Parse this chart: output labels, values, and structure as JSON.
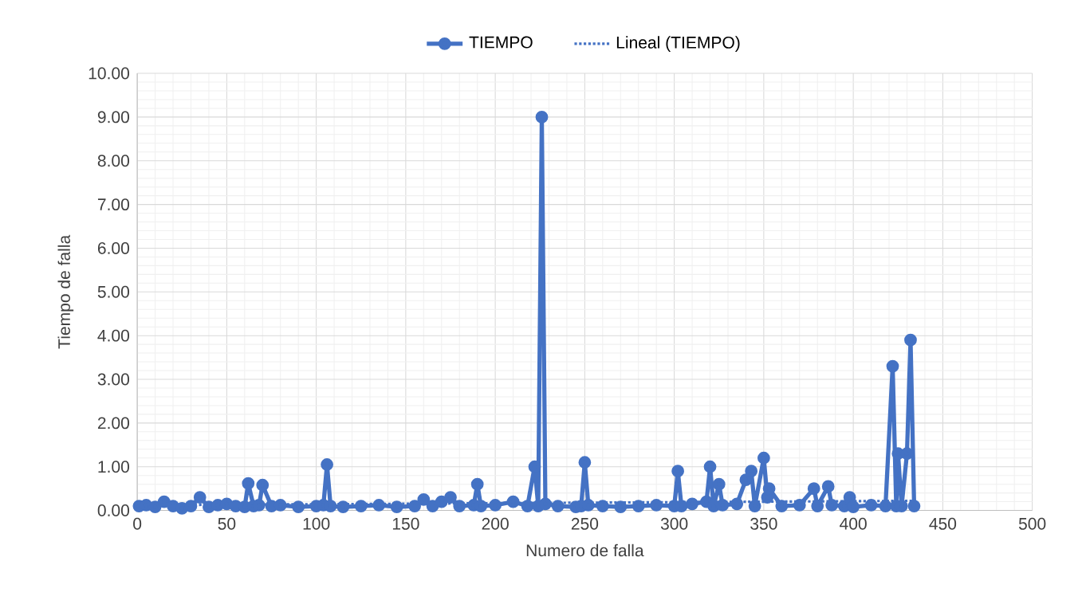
{
  "chart_data": {
    "type": "line",
    "xlabel": "Numero de falla",
    "ylabel": "Tiempo de falla",
    "xlim": [
      0,
      500
    ],
    "xticks": [
      0,
      50,
      100,
      150,
      200,
      250,
      300,
      350,
      400,
      450,
      500
    ],
    "ylim": [
      0,
      10
    ],
    "yticks": [
      {
        "value": 0,
        "label": "0.00"
      },
      {
        "value": 1,
        "label": "1.00"
      },
      {
        "value": 2,
        "label": "2.00"
      },
      {
        "value": 3,
        "label": "3.00"
      },
      {
        "value": 4,
        "label": "4.00"
      },
      {
        "value": 5,
        "label": "5.00"
      },
      {
        "value": 6,
        "label": "6.00"
      },
      {
        "value": 7,
        "label": "7.00"
      },
      {
        "value": 8,
        "label": "8.00"
      },
      {
        "value": 9,
        "label": "9.00"
      },
      {
        "value": 10,
        "label": "10.00"
      }
    ],
    "grid": true,
    "legend": "top",
    "series": [
      {
        "name": "TIEMPO",
        "color": "#4472c4",
        "marker": "circle",
        "line_style": "solid",
        "x": [
          1,
          5,
          10,
          15,
          20,
          25,
          30,
          35,
          40,
          45,
          50,
          55,
          60,
          62,
          65,
          68,
          70,
          75,
          80,
          90,
          100,
          104,
          106,
          108,
          115,
          125,
          135,
          145,
          155,
          160,
          165,
          170,
          175,
          180,
          188,
          190,
          192,
          200,
          210,
          218,
          222,
          224,
          226,
          228,
          235,
          245,
          248,
          250,
          252,
          260,
          270,
          280,
          290,
          300,
          302,
          304,
          310,
          318,
          320,
          322,
          325,
          327,
          335,
          340,
          343,
          345,
          350,
          352,
          353,
          360,
          370,
          378,
          380,
          386,
          388,
          395,
          398,
          400,
          410,
          418,
          422,
          424,
          425,
          427,
          430,
          432,
          434
        ],
        "values": [
          0.1,
          0.12,
          0.08,
          0.2,
          0.1,
          0.05,
          0.1,
          0.3,
          0.08,
          0.12,
          0.15,
          0.1,
          0.08,
          0.62,
          0.1,
          0.12,
          0.58,
          0.1,
          0.12,
          0.08,
          0.1,
          0.12,
          1.05,
          0.1,
          0.08,
          0.1,
          0.12,
          0.08,
          0.1,
          0.25,
          0.1,
          0.2,
          0.3,
          0.1,
          0.12,
          0.6,
          0.1,
          0.12,
          0.2,
          0.1,
          1.0,
          0.1,
          9.0,
          0.15,
          0.1,
          0.08,
          0.1,
          1.1,
          0.12,
          0.1,
          0.08,
          0.1,
          0.12,
          0.1,
          0.9,
          0.1,
          0.15,
          0.2,
          1.0,
          0.1,
          0.6,
          0.12,
          0.15,
          0.7,
          0.9,
          0.1,
          1.2,
          0.3,
          0.5,
          0.1,
          0.12,
          0.5,
          0.1,
          0.55,
          0.12,
          0.1,
          0.3,
          0.08,
          0.12,
          0.1,
          3.3,
          0.1,
          1.3,
          0.1,
          1.3,
          3.9,
          0.1
        ]
      },
      {
        "name": "Lineal (TIEMPO)",
        "color": "#4472c4",
        "marker": "none",
        "line_style": "dotted",
        "x": [
          1,
          434
        ],
        "values": [
          0.12,
          0.22
        ]
      }
    ]
  }
}
